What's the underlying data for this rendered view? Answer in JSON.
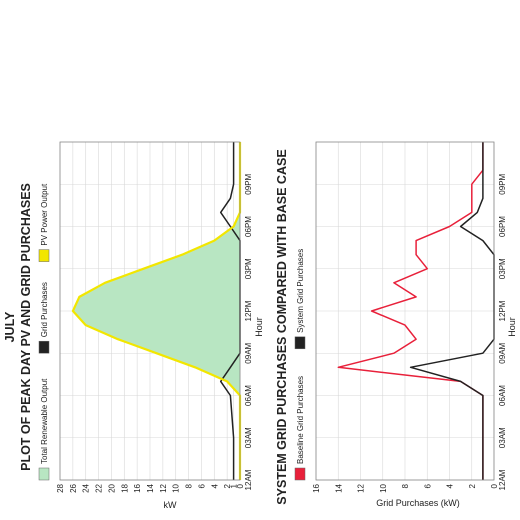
{
  "page_title": "JULY",
  "chart_data": [
    {
      "type": "area",
      "title": "PLOT OF PEAK DAY PV AND GRID PURCHASES",
      "xlabel": "Hour",
      "ylabel": "kW",
      "categories": [
        "12AM",
        "03AM",
        "06AM",
        "09AM",
        "12PM",
        "03PM",
        "06PM",
        "09PM"
      ],
      "x": [
        0,
        3,
        6,
        7,
        8,
        9,
        10,
        11,
        12,
        13,
        14,
        15,
        16,
        17,
        18,
        19,
        20,
        21,
        22,
        23,
        24
      ],
      "ylim": [
        0,
        28
      ],
      "yticks": [
        0,
        1,
        2,
        4,
        6,
        8,
        10,
        12,
        14,
        16,
        18,
        20,
        22,
        24,
        26,
        28
      ],
      "grid": true,
      "legend_position": "top",
      "series": [
        {
          "name": "Total Renewable Output",
          "color": "#b8e6c2",
          "values": [
            0,
            0,
            0,
            2,
            7,
            13,
            19,
            24,
            26,
            25,
            21,
            15,
            9,
            4,
            1,
            0,
            0,
            0,
            0,
            0,
            0
          ]
        },
        {
          "name": "Grid Purchases",
          "color": "#222222",
          "values": [
            1,
            1,
            1.5,
            3,
            1.5,
            0,
            0,
            0,
            0,
            0,
            0,
            0,
            0,
            0,
            1.5,
            3,
            1.5,
            1,
            1,
            1,
            1
          ]
        },
        {
          "name": "PV Power Output",
          "color": "#f2e600",
          "values": [
            0,
            0,
            0,
            2,
            7,
            13,
            19,
            24,
            26,
            25,
            21,
            15,
            9,
            4,
            1,
            0,
            0,
            0,
            0,
            0,
            0
          ]
        }
      ]
    },
    {
      "type": "line",
      "title": "SYSTEM GRID PURCHASES COMPARED WITH BASE CASE",
      "xlabel": "Hour",
      "ylabel": "Grid Purchases (kW)",
      "categories": [
        "12AM",
        "03AM",
        "06AM",
        "09AM",
        "12PM",
        "03PM",
        "06PM",
        "09PM"
      ],
      "x": [
        0,
        2,
        4,
        6,
        7,
        8,
        9,
        10,
        11,
        12,
        13,
        14,
        15,
        16,
        17,
        18,
        19,
        20,
        21,
        22,
        23,
        24
      ],
      "ylim": [
        0,
        16
      ],
      "yticks": [
        0,
        2,
        4,
        6,
        8,
        10,
        12,
        14,
        16
      ],
      "grid": true,
      "legend_position": "top",
      "series": [
        {
          "name": "Baseline Grid Purchases",
          "color": "#e8203a",
          "values": [
            1,
            1,
            1,
            1,
            3,
            14,
            9,
            7,
            8,
            11,
            7,
            9,
            6,
            7,
            7,
            4,
            2,
            2,
            2,
            1,
            1,
            1
          ]
        },
        {
          "name": "System Grid Purchases",
          "color": "#222222",
          "values": [
            1,
            1,
            1,
            1,
            3,
            7.5,
            1,
            0,
            0,
            0,
            0,
            0,
            0,
            0,
            1,
            3,
            1.5,
            1,
            1,
            1,
            1,
            1
          ]
        }
      ]
    }
  ]
}
